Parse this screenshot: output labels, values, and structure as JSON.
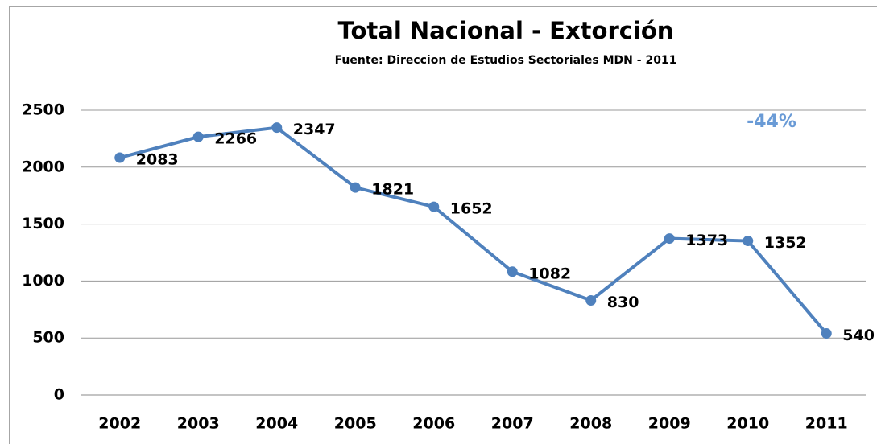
{
  "chart_data": {
    "type": "line",
    "title": "Total Nacional - Extorción",
    "subtitle": "Fuente: Direccion de Estudios Sectoriales  MDN - 2011",
    "annotations": [
      "-44%"
    ],
    "categories": [
      "2002",
      "2003",
      "2004",
      "2005",
      "2006",
      "2007",
      "2008",
      "2009",
      "2010",
      "2011"
    ],
    "series": [
      {
        "name": "Extorción",
        "color": "#4f81bd",
        "values": [
          2083,
          2266,
          2347,
          1821,
          1652,
          1082,
          830,
          1373,
          1352,
          540
        ]
      }
    ],
    "ylim": [
      0,
      2500
    ],
    "yticks": [
      0,
      500,
      1000,
      1500,
      2000,
      2500
    ],
    "grid": true
  }
}
